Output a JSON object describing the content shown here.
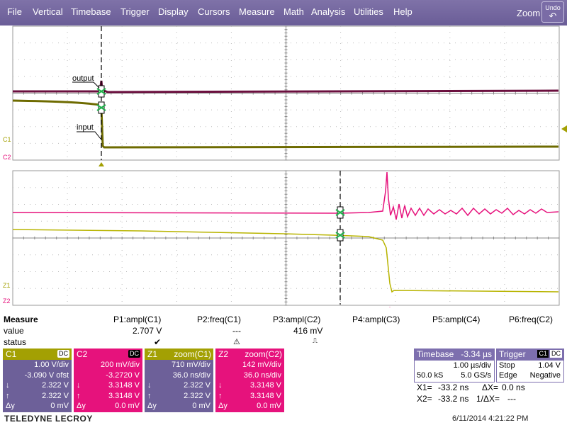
{
  "menu": [
    "File",
    "Vertical",
    "Timebase",
    "Trigger",
    "Display",
    "Cursors",
    "Measure",
    "Math",
    "Analysis",
    "Utilities",
    "Help"
  ],
  "toolbar": {
    "zoom_label": "Zoom",
    "undo_label": "Undo"
  },
  "colors": {
    "menu_bg": "#7366a0",
    "c1_yellow": "#a3a003",
    "c2_pink": "#e6127c",
    "trace_dark": "#6b0f3e",
    "trace_olive": "#6e6b00"
  },
  "top_grid": {
    "labels": {
      "output": "output",
      "input": "input"
    },
    "markers": {
      "c1": "C1",
      "c2": "C2"
    }
  },
  "bottom_grid": {
    "markers": {
      "z1": "Z1",
      "z2": "Z2"
    }
  },
  "measure": {
    "row_labels": [
      "Measure",
      "value",
      "status"
    ],
    "params": [
      {
        "name": "P1:ampl(C1)",
        "value": "2.707 V",
        "status": "✔"
      },
      {
        "name": "P2:freq(C1)",
        "value": "---",
        "status": "⚠"
      },
      {
        "name": "P3:ampl(C2)",
        "value": "416 mV",
        "status": "⎍"
      },
      {
        "name": "P4:ampl(C3)",
        "value": "",
        "status": ""
      },
      {
        "name": "P5:ampl(C4)",
        "value": "",
        "status": ""
      },
      {
        "name": "P6:freq(C2)",
        "value": "",
        "status": ""
      }
    ]
  },
  "channels": {
    "c1": {
      "name": "C1",
      "coupling": "DC",
      "vdiv": "1.00 V/div",
      "offset": "-3.090 V ofst",
      "down": "2.322 V",
      "up": "2.322 V",
      "dy": "0 mV"
    },
    "c2": {
      "name": "C2",
      "coupling": "DC",
      "vdiv": "200 mV/div",
      "offset": "-3.2720 V",
      "down": "3.3148 V",
      "up": "3.3148 V",
      "dy": "0.0 mV"
    },
    "z1": {
      "name": "Z1",
      "src": "zoom(C1)",
      "vdiv": "710 mV/div",
      "tdiv": "36.0 ns/div",
      "down": "2.322 V",
      "up": "2.322 V",
      "dy": "0 mV"
    },
    "z2": {
      "name": "Z2",
      "src": "zoom(C2)",
      "vdiv": "142 mV/div",
      "tdiv": "36.0 ns/div",
      "down": "3.3148 V",
      "up": "3.3148 V",
      "dy": "0.0 mV"
    }
  },
  "symbols": {
    "down": "↓",
    "up": "↑",
    "dy": "Δy"
  },
  "timebase": {
    "label": "Timebase",
    "delay": "-3.34 µs",
    "tdiv": "1.00 µs/div",
    "samples": "50.0 kS",
    "rate": "5.0 GS/s"
  },
  "trigger": {
    "label": "Trigger",
    "source": "C1",
    "coupling": "DC",
    "mode": "Stop",
    "level": "1.04 V",
    "type": "Edge",
    "slope": "Negative"
  },
  "cursors": {
    "x1_label": "X1=",
    "x1": "-33.2 ns",
    "dx_label": "ΔX=",
    "dx": "0.0 ns",
    "x2_label": "X2=",
    "x2": "-33.2 ns",
    "inv_label": "1/ΔX=",
    "inv": "---"
  },
  "brand": "TELEDYNE LECROY",
  "datetime": "6/11/2014 4:21:22 PM"
}
